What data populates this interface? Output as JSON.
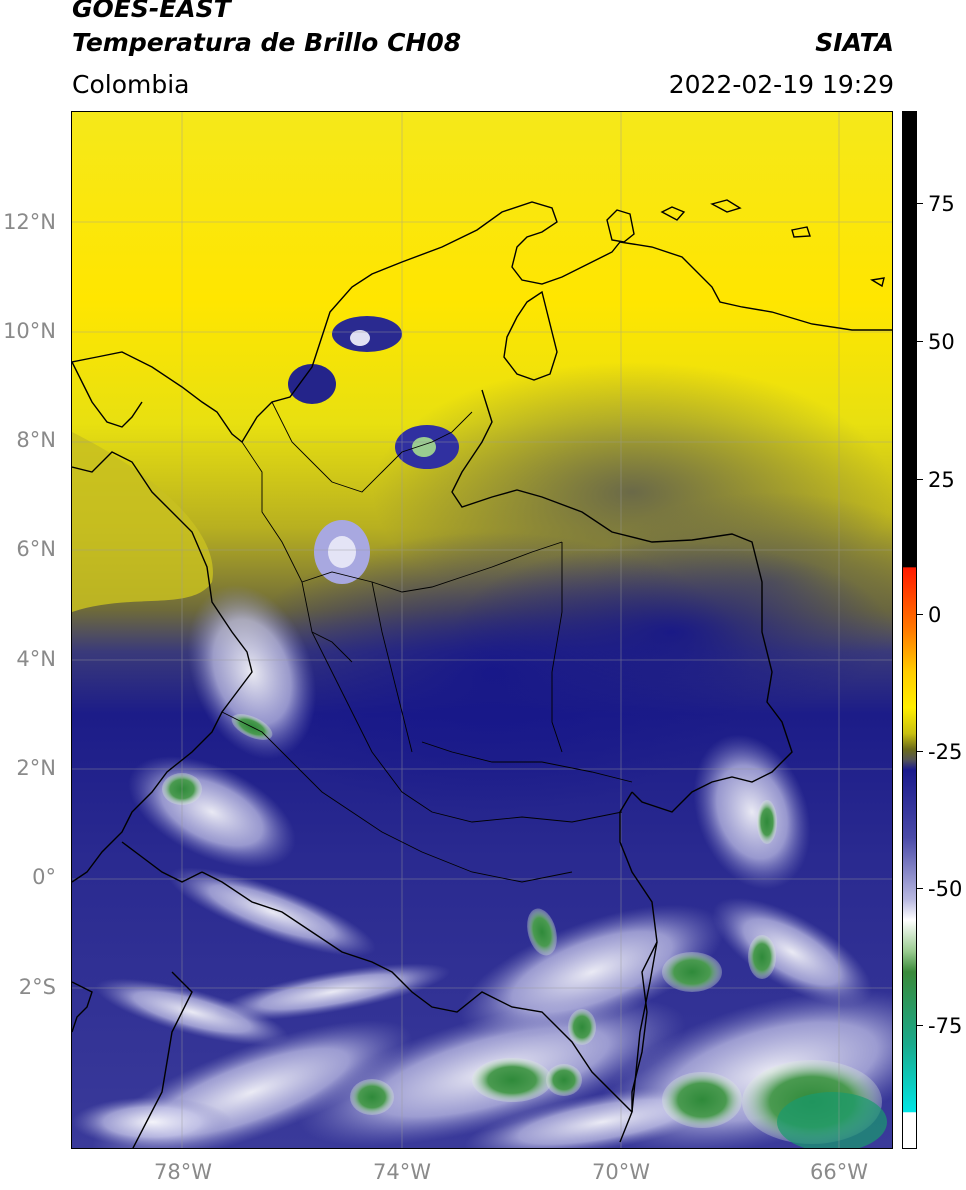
{
  "header": {
    "satellite": "GOES-EAST",
    "product": "Temperatura de Brillo CH08",
    "region": "Colombia",
    "organization": "SIATA",
    "datetime": "2022-02-19 19:29"
  },
  "map": {
    "lat_ticks": [
      "12°N",
      "10°N",
      "8°N",
      "6°N",
      "4°N",
      "2°N",
      "0°",
      "2°S"
    ],
    "lon_ticks": [
      "78°W",
      "74°W",
      "70°W",
      "66°W"
    ],
    "extent": {
      "lon_min": -80,
      "lon_max": -65,
      "lat_min": -5,
      "lat_max": 14
    }
  },
  "colorbar": {
    "ticks": [
      "75",
      "50",
      "25",
      "0",
      "-25",
      "-50",
      "-75"
    ],
    "colors": {
      "black": "#000000",
      "red": "#ff1a00",
      "orange": "#ff8800",
      "yellow": "#ffee00",
      "olive": "#6b6b1a",
      "gray": "#555555",
      "navy": "#1a1a8c",
      "lavender": "#b8b8e0",
      "white": "#ffffff",
      "green": "#3a8a3a",
      "teal": "#1aaa8c",
      "cyan": "#00e5e5"
    }
  }
}
